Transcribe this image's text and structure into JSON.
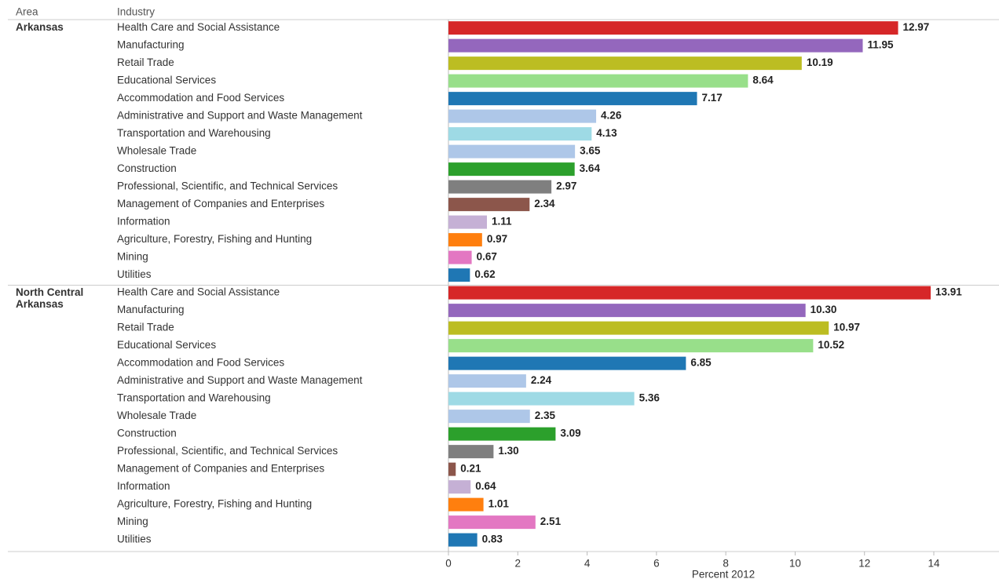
{
  "chart_data": {
    "type": "bar",
    "column_headers": [
      "Area",
      "Industry"
    ],
    "x_label": "Percent 2012",
    "categories": [
      "Health Care and Social Assistance",
      "Manufacturing",
      "Retail Trade",
      "Educational Services",
      "Accommodation and Food Services",
      "Administrative and Support and Waste Management",
      "Transportation and Warehousing",
      "Wholesale Trade",
      "Construction",
      "Professional, Scientific, and Technical Services",
      "Management of Companies and Enterprises",
      "Information",
      "Agriculture, Forestry, Fishing and Hunting",
      "Mining",
      "Utilities"
    ],
    "colors": [
      "#d62728",
      "#9467bd",
      "#bcbd22",
      "#98df8a",
      "#1f77b4",
      "#aec7e8",
      "#9edae5",
      "#aec7e8",
      "#2ca02c",
      "#7f7f7f",
      "#8c564b",
      "#c5b0d5",
      "#ff7f0e",
      "#e377c2",
      "#1f77b4"
    ],
    "series": [
      {
        "name": "Arkansas",
        "values": [
          12.97,
          11.95,
          10.19,
          8.64,
          7.17,
          4.26,
          4.13,
          3.65,
          3.64,
          2.97,
          2.34,
          1.11,
          0.97,
          0.67,
          0.62
        ],
        "value_labels": [
          "12.97",
          "11.95",
          "10.19",
          "8.64",
          "7.17",
          "4.26",
          "4.13",
          "3.65",
          "3.64",
          "2.97",
          "2.34",
          "1.11",
          "0.97",
          "0.67",
          "0.62"
        ]
      },
      {
        "name": "North Central Arkansas",
        "values": [
          13.91,
          10.3,
          10.97,
          10.52,
          6.85,
          2.24,
          5.36,
          2.35,
          3.09,
          1.3,
          0.21,
          0.64,
          1.01,
          2.51,
          0.83
        ],
        "value_labels": [
          "13.91",
          "10.30",
          "10.97",
          "10.52",
          "6.85",
          "2.24",
          "5.36",
          "2.35",
          "3.09",
          "1.30",
          "0.21",
          "0.64",
          "1.01",
          "2.51",
          "0.83"
        ]
      }
    ],
    "xlim": [
      0,
      15.5
    ],
    "xticks": [
      0,
      2,
      4,
      6,
      8,
      10,
      12,
      14
    ]
  }
}
